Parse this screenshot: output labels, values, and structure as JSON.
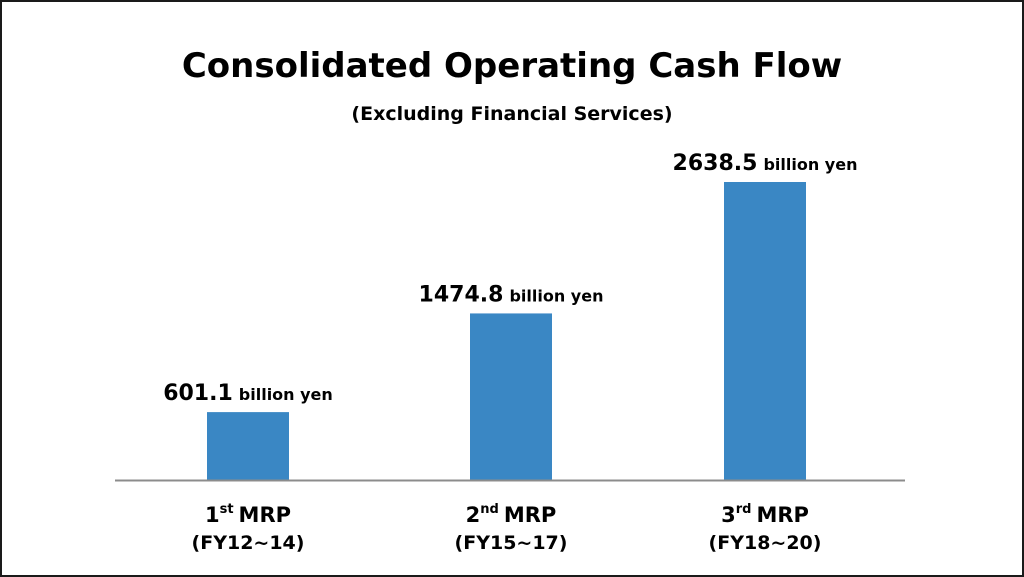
{
  "chart_data": {
    "type": "bar",
    "title": "Consolidated Operating Cash Flow",
    "subtitle": "(Excluding Financial Services)",
    "categories": [
      {
        "num": "1",
        "sup": "st",
        "name": "MRP",
        "period": "(FY12~14)"
      },
      {
        "num": "2",
        "sup": "nd",
        "name": "MRP",
        "period": "(FY15~17)"
      },
      {
        "num": "3",
        "sup": "rd",
        "name": "MRP",
        "period": "(FY18~20)"
      }
    ],
    "values": [
      601.1,
      1474.8,
      2638.5
    ],
    "value_labels": [
      "601.1",
      "1474.8",
      "2638.5"
    ],
    "unit": "billion yen",
    "ylim": [
      0,
      2638.5
    ],
    "bar_color": "#3a87c4",
    "axis_color": "#8c8c8c",
    "grid": false,
    "legend": "none"
  }
}
